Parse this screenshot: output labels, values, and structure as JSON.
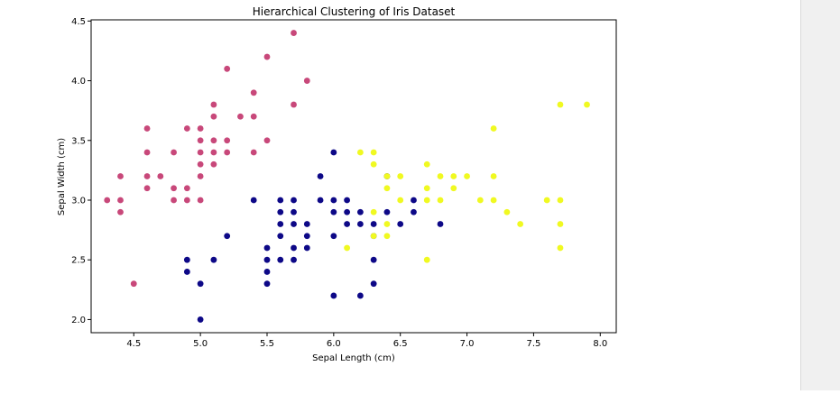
{
  "chart_data": {
    "type": "scatter",
    "title": "Hierarchical Clustering of Iris Dataset",
    "xlabel": "Sepal Length (cm)",
    "ylabel": "Sepal Width (cm)",
    "xlim": [
      4.18,
      8.12
    ],
    "ylim": [
      1.89,
      4.51
    ],
    "xticks": [
      "4.5",
      "5.0",
      "5.5",
      "6.0",
      "6.5",
      "7.0",
      "7.5",
      "8.0"
    ],
    "yticks": [
      "2.0",
      "2.5",
      "3.0",
      "3.5",
      "4.0",
      "4.5"
    ],
    "grid": false,
    "colors": {
      "cluster_pink": "#c8487a",
      "cluster_navy": "#0d0887",
      "cluster_yellow": "#f0f921"
    },
    "series": [
      {
        "color": "cluster_pink",
        "points": [
          [
            5.7,
            4.4
          ],
          [
            5.5,
            4.2
          ],
          [
            5.2,
            4.1
          ],
          [
            5.8,
            4.0
          ],
          [
            5.4,
            3.9
          ],
          [
            5.1,
            3.8
          ],
          [
            5.7,
            3.8
          ],
          [
            5.1,
            3.7
          ],
          [
            5.3,
            3.7
          ],
          [
            5.4,
            3.7
          ],
          [
            4.6,
            3.6
          ],
          [
            4.9,
            3.6
          ],
          [
            5.0,
            3.6
          ],
          [
            5.0,
            3.5
          ],
          [
            5.1,
            3.5
          ],
          [
            5.2,
            3.5
          ],
          [
            5.5,
            3.5
          ],
          [
            4.6,
            3.4
          ],
          [
            4.8,
            3.4
          ],
          [
            5.0,
            3.4
          ],
          [
            5.1,
            3.4
          ],
          [
            5.2,
            3.4
          ],
          [
            5.4,
            3.4
          ],
          [
            5.0,
            3.3
          ],
          [
            5.1,
            3.3
          ],
          [
            4.4,
            3.2
          ],
          [
            4.6,
            3.2
          ],
          [
            4.7,
            3.2
          ],
          [
            5.0,
            3.2
          ],
          [
            4.6,
            3.1
          ],
          [
            4.8,
            3.1
          ],
          [
            4.9,
            3.1
          ],
          [
            4.3,
            3.0
          ],
          [
            4.4,
            3.0
          ],
          [
            4.8,
            3.0
          ],
          [
            4.9,
            3.0
          ],
          [
            5.0,
            3.0
          ],
          [
            4.4,
            2.9
          ],
          [
            4.5,
            2.3
          ]
        ]
      },
      {
        "color": "cluster_navy",
        "points": [
          [
            6.0,
            3.4
          ],
          [
            5.9,
            3.2
          ],
          [
            5.4,
            3.0
          ],
          [
            5.6,
            3.0
          ],
          [
            5.7,
            3.0
          ],
          [
            5.9,
            3.0
          ],
          [
            6.0,
            3.0
          ],
          [
            6.1,
            3.0
          ],
          [
            5.6,
            2.9
          ],
          [
            5.7,
            2.9
          ],
          [
            6.0,
            2.9
          ],
          [
            6.1,
            2.9
          ],
          [
            6.2,
            2.9
          ],
          [
            6.4,
            2.9
          ],
          [
            6.6,
            2.9
          ],
          [
            5.6,
            2.8
          ],
          [
            5.7,
            2.8
          ],
          [
            5.8,
            2.8
          ],
          [
            6.1,
            2.8
          ],
          [
            6.2,
            2.8
          ],
          [
            6.3,
            2.8
          ],
          [
            6.5,
            2.8
          ],
          [
            6.8,
            2.8
          ],
          [
            5.6,
            2.7
          ],
          [
            5.8,
            2.7
          ],
          [
            6.0,
            2.7
          ],
          [
            6.3,
            2.7
          ],
          [
            5.2,
            2.7
          ],
          [
            5.5,
            2.6
          ],
          [
            5.7,
            2.6
          ],
          [
            5.8,
            2.6
          ],
          [
            5.5,
            2.5
          ],
          [
            5.6,
            2.5
          ],
          [
            5.7,
            2.5
          ],
          [
            6.3,
            2.5
          ],
          [
            4.9,
            2.5
          ],
          [
            5.1,
            2.5
          ],
          [
            4.9,
            2.4
          ],
          [
            5.5,
            2.4
          ],
          [
            5.0,
            2.3
          ],
          [
            5.5,
            2.3
          ],
          [
            6.3,
            2.3
          ],
          [
            6.0,
            2.2
          ],
          [
            6.2,
            2.2
          ],
          [
            5.0,
            2.0
          ],
          [
            6.6,
            3.0
          ],
          [
            6.4,
            3.2
          ]
        ]
      },
      {
        "color": "cluster_yellow",
        "points": [
          [
            7.7,
            3.8
          ],
          [
            7.9,
            3.8
          ],
          [
            7.2,
            3.6
          ],
          [
            6.2,
            3.4
          ],
          [
            6.3,
            3.4
          ],
          [
            6.3,
            3.3
          ],
          [
            6.7,
            3.3
          ],
          [
            6.4,
            3.2
          ],
          [
            6.5,
            3.2
          ],
          [
            6.8,
            3.2
          ],
          [
            6.9,
            3.2
          ],
          [
            7.0,
            3.2
          ],
          [
            7.2,
            3.2
          ],
          [
            6.4,
            3.1
          ],
          [
            6.7,
            3.1
          ],
          [
            6.9,
            3.1
          ],
          [
            6.5,
            3.0
          ],
          [
            6.7,
            3.0
          ],
          [
            6.8,
            3.0
          ],
          [
            7.1,
            3.0
          ],
          [
            7.2,
            3.0
          ],
          [
            7.6,
            3.0
          ],
          [
            7.7,
            3.0
          ],
          [
            7.3,
            2.9
          ],
          [
            6.3,
            2.9
          ],
          [
            6.4,
            2.8
          ],
          [
            7.4,
            2.8
          ],
          [
            7.7,
            2.8
          ],
          [
            6.3,
            2.7
          ],
          [
            6.4,
            2.7
          ],
          [
            6.1,
            2.6
          ],
          [
            7.7,
            2.6
          ],
          [
            6.7,
            2.5
          ]
        ]
      }
    ]
  }
}
